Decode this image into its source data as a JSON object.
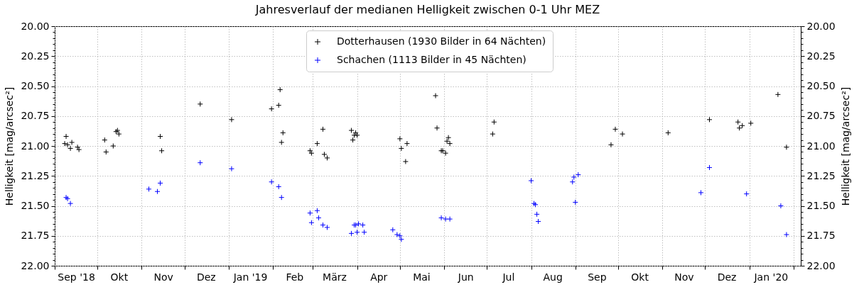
{
  "chart_data": {
    "type": "scatter",
    "title": "Jahresverlauf der medianen Helligkeit zwischen 0-1 Uhr MEZ",
    "ylabel": "Helligkeit [mag/arcsec²]",
    "y2label": "Helligkeit [mag/arcsec²]",
    "xlim": [
      "2018-09-01",
      "2020-02-06"
    ],
    "xticks": [
      {
        "value": "2018-09-01",
        "label": null
      },
      {
        "value": "2018-10-01",
        "label": null
      },
      {
        "value": "2018-11-01",
        "label": null
      },
      {
        "value": "2018-12-01",
        "label": null
      },
      {
        "value": "2019-01-01",
        "label": null
      },
      {
        "value": "2019-02-01",
        "label": null
      },
      {
        "value": "2019-03-01",
        "label": null
      },
      {
        "value": "2019-04-01",
        "label": null
      },
      {
        "value": "2019-05-01",
        "label": null
      },
      {
        "value": "2019-06-01",
        "label": null
      },
      {
        "value": "2019-07-01",
        "label": null
      },
      {
        "value": "2019-08-01",
        "label": null
      },
      {
        "value": "2019-09-01",
        "label": null
      },
      {
        "value": "2019-10-01",
        "label": null
      },
      {
        "value": "2019-11-01",
        "label": null
      },
      {
        "value": "2019-12-01",
        "label": null
      },
      {
        "value": "2020-01-01",
        "label": null
      },
      {
        "value": "2020-02-01",
        "label": null
      },
      {
        "value": "2018-09-16",
        "label": "Sep '18"
      },
      {
        "value": "2018-10-16",
        "label": "Okt"
      },
      {
        "value": "2018-11-16",
        "label": "Nov"
      },
      {
        "value": "2018-12-16",
        "label": "Dez"
      },
      {
        "value": "2019-01-16",
        "label": "Jan '19"
      },
      {
        "value": "2019-02-16",
        "label": "Feb"
      },
      {
        "value": "2019-03-16",
        "label": "März"
      },
      {
        "value": "2019-04-16",
        "label": "Apr"
      },
      {
        "value": "2019-05-16",
        "label": "Mai"
      },
      {
        "value": "2019-06-16",
        "label": "Jun"
      },
      {
        "value": "2019-07-16",
        "label": "Jul"
      },
      {
        "value": "2019-08-16",
        "label": "Aug"
      },
      {
        "value": "2019-09-16",
        "label": "Sep"
      },
      {
        "value": "2019-10-16",
        "label": "Okt"
      },
      {
        "value": "2019-11-16",
        "label": "Nov"
      },
      {
        "value": "2019-12-16",
        "label": "Dez"
      },
      {
        "value": "2020-01-16",
        "label": "Jan '20"
      }
    ],
    "ylim": [
      22,
      20
    ],
    "yticks": [
      {
        "value": 20,
        "label": "20.00"
      },
      {
        "value": 20.05,
        "label": null
      },
      {
        "value": 20.1,
        "label": null
      },
      {
        "value": 20.15,
        "label": null
      },
      {
        "value": 20.2,
        "label": null
      },
      {
        "value": 20.25,
        "label": "20.25"
      },
      {
        "value": 20.3,
        "label": null
      },
      {
        "value": 20.35,
        "label": null
      },
      {
        "value": 20.4,
        "label": null
      },
      {
        "value": 20.45,
        "label": null
      },
      {
        "value": 20.5,
        "label": "20.50"
      },
      {
        "value": 20.55,
        "label": null
      },
      {
        "value": 20.6,
        "label": null
      },
      {
        "value": 20.65,
        "label": null
      },
      {
        "value": 20.7,
        "label": null
      },
      {
        "value": 20.75,
        "label": "20.75"
      },
      {
        "value": 20.8,
        "label": null
      },
      {
        "value": 20.85,
        "label": null
      },
      {
        "value": 20.9,
        "label": null
      },
      {
        "value": 20.95,
        "label": null
      },
      {
        "value": 21,
        "label": "21.00"
      },
      {
        "value": 21.05,
        "label": null
      },
      {
        "value": 21.1,
        "label": null
      },
      {
        "value": 21.15,
        "label": null
      },
      {
        "value": 21.2,
        "label": null
      },
      {
        "value": 21.25,
        "label": "21.25"
      },
      {
        "value": 21.3,
        "label": null
      },
      {
        "value": 21.35,
        "label": null
      },
      {
        "value": 21.4,
        "label": null
      },
      {
        "value": 21.45,
        "label": null
      },
      {
        "value": 21.5,
        "label": "21.50"
      },
      {
        "value": 21.55,
        "label": null
      },
      {
        "value": 21.6,
        "label": null
      },
      {
        "value": 21.65,
        "label": null
      },
      {
        "value": 21.7,
        "label": null
      },
      {
        "value": 21.75,
        "label": "21.75"
      },
      {
        "value": 21.8,
        "label": null
      },
      {
        "value": 21.85,
        "label": null
      },
      {
        "value": 21.9,
        "label": null
      },
      {
        "value": 21.95,
        "label": null
      },
      {
        "value": 22,
        "label": "22.00"
      }
    ],
    "y2lim": [
      22,
      20
    ],
    "y2ticks": [
      {
        "value": 20,
        "label": "20.00"
      },
      {
        "value": 20.05,
        "label": null
      },
      {
        "value": 20.1,
        "label": null
      },
      {
        "value": 20.15,
        "label": null
      },
      {
        "value": 20.2,
        "label": null
      },
      {
        "value": 20.25,
        "label": "20.25"
      },
      {
        "value": 20.3,
        "label": null
      },
      {
        "value": 20.35,
        "label": null
      },
      {
        "value": 20.4,
        "label": null
      },
      {
        "value": 20.45,
        "label": null
      },
      {
        "value": 20.5,
        "label": "20.50"
      },
      {
        "value": 20.55,
        "label": null
      },
      {
        "value": 20.6,
        "label": null
      },
      {
        "value": 20.65,
        "label": null
      },
      {
        "value": 20.7,
        "label": null
      },
      {
        "value": 20.75,
        "label": "20.75"
      },
      {
        "value": 20.8,
        "label": null
      },
      {
        "value": 20.85,
        "label": null
      },
      {
        "value": 20.9,
        "label": null
      },
      {
        "value": 20.95,
        "label": null
      },
      {
        "value": 21,
        "label": "21.00"
      },
      {
        "value": 21.05,
        "label": null
      },
      {
        "value": 21.1,
        "label": null
      },
      {
        "value": 21.15,
        "label": null
      },
      {
        "value": 21.2,
        "label": null
      },
      {
        "value": 21.25,
        "label": "21.25"
      },
      {
        "value": 21.3,
        "label": null
      },
      {
        "value": 21.35,
        "label": null
      },
      {
        "value": 21.4,
        "label": null
      },
      {
        "value": 21.45,
        "label": null
      },
      {
        "value": 21.5,
        "label": "21.50"
      },
      {
        "value": 21.55,
        "label": null
      },
      {
        "value": 21.6,
        "label": null
      },
      {
        "value": 21.65,
        "label": null
      },
      {
        "value": 21.7,
        "label": null
      },
      {
        "value": 21.75,
        "label": "21.75"
      },
      {
        "value": 21.8,
        "label": null
      },
      {
        "value": 21.85,
        "label": null
      },
      {
        "value": 21.9,
        "label": null
      },
      {
        "value": 21.95,
        "label": null
      },
      {
        "value": 22,
        "label": "22.00"
      }
    ],
    "grid": true,
    "legend": "top",
    "marker": "cross",
    "series": [
      {
        "name": "Dotterhausen (1930 Bilder in 64 Nächten)",
        "color": "#000000",
        "x": [
          "2018-09-08",
          "2018-09-09",
          "2018-09-10",
          "2018-09-12",
          "2018-09-13",
          "2018-09-17",
          "2018-09-18",
          "2018-10-06",
          "2018-10-07",
          "2018-10-12",
          "2018-10-14",
          "2018-10-15",
          "2018-10-16",
          "2018-11-14",
          "2018-11-15",
          "2018-12-12",
          "2019-01-03",
          "2019-01-31",
          "2019-02-05",
          "2019-02-06",
          "2019-02-07",
          "2019-02-08",
          "2019-02-27",
          "2019-02-28",
          "2019-03-04",
          "2019-03-08",
          "2019-03-09",
          "2019-03-11",
          "2019-03-28",
          "2019-03-29",
          "2019-03-30",
          "2019-03-31",
          "2019-04-01",
          "2019-05-01",
          "2019-05-02",
          "2019-05-05",
          "2019-05-06",
          "2019-05-26",
          "2019-05-27",
          "2019-05-30",
          "2019-05-31",
          "2019-06-02",
          "2019-06-03",
          "2019-06-04",
          "2019-06-05",
          "2019-07-05",
          "2019-07-06",
          "2019-09-26",
          "2019-09-29",
          "2019-10-04",
          "2019-11-05",
          "2019-12-04",
          "2019-12-24",
          "2019-12-25",
          "2019-12-27",
          "2020-01-02",
          "2020-01-21",
          "2020-01-27"
        ],
        "values": [
          20.98,
          20.92,
          20.99,
          21.02,
          20.97,
          21.01,
          21.03,
          20.95,
          21.05,
          21.0,
          20.88,
          20.87,
          20.9,
          20.92,
          21.04,
          20.65,
          20.78,
          20.69,
          20.66,
          20.53,
          20.97,
          20.89,
          21.04,
          21.06,
          20.98,
          20.86,
          21.07,
          21.1,
          20.87,
          20.95,
          20.91,
          20.89,
          20.91,
          20.94,
          21.02,
          21.13,
          20.98,
          20.58,
          20.85,
          21.04,
          21.04,
          21.06,
          20.96,
          20.93,
          20.98,
          20.9,
          20.8,
          20.99,
          20.86,
          20.9,
          20.89,
          20.78,
          20.8,
          20.85,
          20.83,
          20.81,
          20.57,
          21.01
        ]
      },
      {
        "name": "Schachen (1113 Bilder in 45 Nächten)",
        "color": "#0000ff",
        "x": [
          "2018-09-09",
          "2018-09-10",
          "2018-09-12",
          "2018-11-06",
          "2018-11-12",
          "2018-11-14",
          "2018-12-12",
          "2019-01-03",
          "2019-01-31",
          "2019-02-05",
          "2019-02-07",
          "2019-02-27",
          "2019-02-28",
          "2019-03-04",
          "2019-03-05",
          "2019-03-08",
          "2019-03-11",
          "2019-03-28",
          "2019-03-30",
          "2019-03-31",
          "2019-04-01",
          "2019-04-02",
          "2019-04-05",
          "2019-04-06",
          "2019-04-26",
          "2019-04-29",
          "2019-05-01",
          "2019-05-02",
          "2019-05-30",
          "2019-06-02",
          "2019-06-05",
          "2019-08-01",
          "2019-08-03",
          "2019-08-04",
          "2019-08-05",
          "2019-08-06",
          "2019-08-30",
          "2019-08-31",
          "2019-09-01",
          "2019-09-03",
          "2019-11-28",
          "2019-12-04",
          "2019-12-30",
          "2020-01-23",
          "2020-01-27"
        ],
        "values": [
          21.43,
          21.44,
          21.48,
          21.36,
          21.38,
          21.31,
          21.14,
          21.19,
          21.3,
          21.34,
          21.43,
          21.56,
          21.64,
          21.54,
          21.6,
          21.66,
          21.68,
          21.73,
          21.66,
          21.66,
          21.72,
          21.65,
          21.66,
          21.72,
          21.7,
          21.74,
          21.75,
          21.78,
          21.6,
          21.61,
          21.61,
          21.29,
          21.48,
          21.49,
          21.57,
          21.63,
          21.3,
          21.26,
          21.47,
          21.24,
          21.39,
          21.18,
          21.4,
          21.5,
          21.74
        ]
      }
    ]
  }
}
